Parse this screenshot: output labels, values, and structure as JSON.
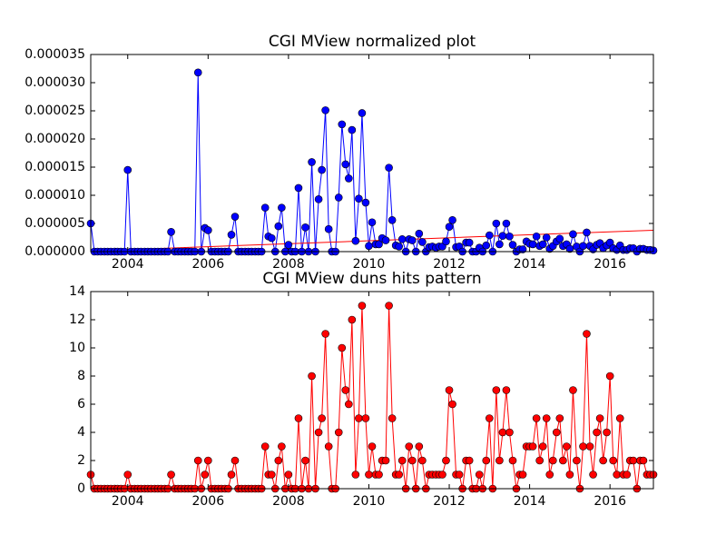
{
  "chart_data": [
    {
      "type": "line",
      "title": "CGI MView normalized plot",
      "xlim": [
        2003.08,
        2017.08
      ],
      "xticks": [
        2004,
        2006,
        2008,
        2010,
        2012,
        2014,
        2016
      ],
      "ylim": [
        0,
        3.5e-05
      ],
      "yticks": [
        {
          "value": 0,
          "label": "0.000000"
        },
        {
          "value": 5e-06,
          "label": "0.000005"
        },
        {
          "value": 1e-05,
          "label": "0.000010"
        },
        {
          "value": 1.5e-05,
          "label": "0.000015"
        },
        {
          "value": 2e-05,
          "label": "0.000020"
        },
        {
          "value": 2.5e-05,
          "label": "0.000025"
        },
        {
          "value": 3e-05,
          "label": "0.000030"
        },
        {
          "value": 3.5e-05,
          "label": "0.000035"
        }
      ],
      "x": [
        2003.08,
        2003.17,
        2003.25,
        2003.33,
        2003.42,
        2003.5,
        2003.58,
        2003.67,
        2003.75,
        2003.83,
        2003.92,
        2004.0,
        2004.08,
        2004.17,
        2004.25,
        2004.33,
        2004.42,
        2004.5,
        2004.58,
        2004.67,
        2004.75,
        2004.83,
        2004.92,
        2005.0,
        2005.08,
        2005.17,
        2005.25,
        2005.33,
        2005.42,
        2005.5,
        2005.58,
        2005.67,
        2005.75,
        2005.83,
        2005.92,
        2006.0,
        2006.08,
        2006.17,
        2006.25,
        2006.33,
        2006.42,
        2006.5,
        2006.58,
        2006.67,
        2006.75,
        2006.83,
        2006.92,
        2007.0,
        2007.08,
        2007.17,
        2007.25,
        2007.33,
        2007.42,
        2007.5,
        2007.58,
        2007.67,
        2007.75,
        2007.83,
        2007.92,
        2008.0,
        2008.08,
        2008.17,
        2008.25,
        2008.33,
        2008.42,
        2008.5,
        2008.58,
        2008.67,
        2008.75,
        2008.83,
        2008.92,
        2009.0,
        2009.08,
        2009.17,
        2009.25,
        2009.33,
        2009.42,
        2009.5,
        2009.58,
        2009.67,
        2009.75,
        2009.83,
        2009.92,
        2010.0,
        2010.08,
        2010.17,
        2010.25,
        2010.33,
        2010.42,
        2010.5,
        2010.58,
        2010.67,
        2010.75,
        2010.83,
        2010.92,
        2011.0,
        2011.08,
        2011.17,
        2011.25,
        2011.33,
        2011.42,
        2011.5,
        2011.58,
        2011.67,
        2011.75,
        2011.83,
        2011.92,
        2012.0,
        2012.08,
        2012.17,
        2012.25,
        2012.33,
        2012.42,
        2012.5,
        2012.58,
        2012.67,
        2012.75,
        2012.83,
        2012.92,
        2013.0,
        2013.08,
        2013.17,
        2013.25,
        2013.33,
        2013.42,
        2013.5,
        2013.58,
        2013.67,
        2013.75,
        2013.83,
        2013.92,
        2014.0,
        2014.08,
        2014.17,
        2014.25,
        2014.33,
        2014.42,
        2014.5,
        2014.58,
        2014.67,
        2014.75,
        2014.83,
        2014.92,
        2015.0,
        2015.08,
        2015.17,
        2015.25,
        2015.33,
        2015.42,
        2015.5,
        2015.58,
        2015.67,
        2015.75,
        2015.83,
        2015.92,
        2016.0,
        2016.08,
        2016.17,
        2016.25,
        2016.33,
        2016.42,
        2016.5,
        2016.58,
        2016.67,
        2016.75,
        2016.83,
        2016.92,
        2017.0,
        2017.08
      ],
      "color": "#0000ff",
      "values": [
        5e-06,
        0,
        0,
        0,
        0,
        0,
        0,
        0,
        0,
        0,
        0,
        1.45e-05,
        0,
        0,
        0,
        0,
        0,
        0,
        0,
        0,
        0,
        0,
        0,
        0,
        3.5e-06,
        0,
        0,
        0,
        0,
        0,
        0,
        0,
        3.18e-05,
        0,
        4.2e-06,
        3.8e-06,
        0,
        0,
        0,
        0,
        0,
        0,
        3e-06,
        6.2e-06,
        0,
        0,
        0,
        0,
        0,
        0,
        0,
        0,
        7.8e-06,
        2.7e-06,
        2.4e-06,
        0,
        4.5e-06,
        7.8e-06,
        0,
        1.2e-06,
        0,
        0,
        1.13e-05,
        0,
        4.3e-06,
        0,
        1.59e-05,
        0,
        9.3e-06,
        1.45e-05,
        2.51e-05,
        4e-06,
        0,
        0,
        9.6e-06,
        2.26e-05,
        1.55e-05,
        1.3e-05,
        2.16e-05,
        1.9e-06,
        9.4e-06,
        2.46e-05,
        8.7e-06,
        1e-06,
        5.2e-06,
        1.3e-06,
        1.3e-06,
        2.4e-06,
        2e-06,
        1.49e-05,
        5.6e-06,
        1.1e-06,
        9e-07,
        2.2e-06,
        0,
        2.2e-06,
        2e-06,
        0,
        3.2e-06,
        1.7e-06,
        0,
        8e-07,
        9e-07,
        7e-07,
        9e-07,
        9e-07,
        1.8e-06,
        4.4e-06,
        5.6e-06,
        8e-07,
        9e-07,
        0,
        1.6e-06,
        1.6e-06,
        0,
        0,
        7e-07,
        0,
        1.1e-06,
        2.9e-06,
        0,
        5e-06,
        1.3e-06,
        2.8e-06,
        5e-06,
        2.7e-06,
        1.2e-06,
        0,
        4e-07,
        4e-07,
        1.8e-06,
        1.4e-06,
        1.3e-06,
        2.7e-06,
        1e-06,
        1.3e-06,
        2.5e-06,
        5e-07,
        1e-06,
        1.8e-06,
        2.3e-06,
        1e-06,
        1.3e-06,
        5e-07,
        3.1e-06,
        9e-07,
        0,
        1e-06,
        3.4e-06,
        1e-06,
        4e-07,
        1.2e-06,
        1.5e-06,
        6e-07,
        1.1e-06,
        1.6e-06,
        6e-07,
        3e-07,
        1.1e-06,
        3e-07,
        3e-07,
        6e-07,
        6e-07,
        0,
        5e-07,
        5e-07,
        3e-07,
        3e-07,
        2e-07
      ],
      "trend": {
        "x": [
          2003.08,
          2017.08
        ],
        "values": [
          1e-07,
          3.8e-06
        ],
        "color": "#ff0000"
      }
    },
    {
      "type": "line",
      "title": "CGI MView duns hits pattern",
      "xlim": [
        2003.08,
        2017.08
      ],
      "xticks": [
        2004,
        2006,
        2008,
        2010,
        2012,
        2014,
        2016
      ],
      "ylim": [
        0,
        14
      ],
      "yticks": [
        0,
        2,
        4,
        6,
        8,
        10,
        12,
        14
      ],
      "x": [
        2003.08,
        2003.17,
        2003.25,
        2003.33,
        2003.42,
        2003.5,
        2003.58,
        2003.67,
        2003.75,
        2003.83,
        2003.92,
        2004.0,
        2004.08,
        2004.17,
        2004.25,
        2004.33,
        2004.42,
        2004.5,
        2004.58,
        2004.67,
        2004.75,
        2004.83,
        2004.92,
        2005.0,
        2005.08,
        2005.17,
        2005.25,
        2005.33,
        2005.42,
        2005.5,
        2005.58,
        2005.67,
        2005.75,
        2005.83,
        2005.92,
        2006.0,
        2006.08,
        2006.17,
        2006.25,
        2006.33,
        2006.42,
        2006.5,
        2006.58,
        2006.67,
        2006.75,
        2006.83,
        2006.92,
        2007.0,
        2007.08,
        2007.17,
        2007.25,
        2007.33,
        2007.42,
        2007.5,
        2007.58,
        2007.67,
        2007.75,
        2007.83,
        2007.92,
        2008.0,
        2008.08,
        2008.17,
        2008.25,
        2008.33,
        2008.42,
        2008.5,
        2008.58,
        2008.67,
        2008.75,
        2008.83,
        2008.92,
        2009.0,
        2009.08,
        2009.17,
        2009.25,
        2009.33,
        2009.42,
        2009.5,
        2009.58,
        2009.67,
        2009.75,
        2009.83,
        2009.92,
        2010.0,
        2010.08,
        2010.17,
        2010.25,
        2010.33,
        2010.42,
        2010.5,
        2010.58,
        2010.67,
        2010.75,
        2010.83,
        2010.92,
        2011.0,
        2011.08,
        2011.17,
        2011.25,
        2011.33,
        2011.42,
        2011.5,
        2011.58,
        2011.67,
        2011.75,
        2011.83,
        2011.92,
        2012.0,
        2012.08,
        2012.17,
        2012.25,
        2012.33,
        2012.42,
        2012.5,
        2012.58,
        2012.67,
        2012.75,
        2012.83,
        2012.92,
        2013.0,
        2013.08,
        2013.17,
        2013.25,
        2013.33,
        2013.42,
        2013.5,
        2013.58,
        2013.67,
        2013.75,
        2013.83,
        2013.92,
        2014.0,
        2014.08,
        2014.17,
        2014.25,
        2014.33,
        2014.42,
        2014.5,
        2014.58,
        2014.67,
        2014.75,
        2014.83,
        2014.92,
        2015.0,
        2015.08,
        2015.17,
        2015.25,
        2015.33,
        2015.42,
        2015.5,
        2015.58,
        2015.67,
        2015.75,
        2015.83,
        2015.92,
        2016.0,
        2016.08,
        2016.17,
        2016.25,
        2016.33,
        2016.42,
        2016.5,
        2016.58,
        2016.67,
        2016.75,
        2016.83,
        2016.92,
        2017.0,
        2017.08
      ],
      "color": "#ff0000",
      "values": [
        1,
        0,
        0,
        0,
        0,
        0,
        0,
        0,
        0,
        0,
        0,
        1,
        0,
        0,
        0,
        0,
        0,
        0,
        0,
        0,
        0,
        0,
        0,
        0,
        1,
        0,
        0,
        0,
        0,
        0,
        0,
        0,
        2,
        0,
        1,
        2,
        0,
        0,
        0,
        0,
        0,
        0,
        1,
        2,
        0,
        0,
        0,
        0,
        0,
        0,
        0,
        0,
        3,
        1,
        1,
        0,
        2,
        3,
        0,
        1,
        0,
        0,
        5,
        0,
        2,
        0,
        8,
        0,
        4,
        5,
        11,
        3,
        0,
        0,
        4,
        10,
        7,
        6,
        12,
        1,
        5,
        13,
        5,
        1,
        3,
        1,
        1,
        2,
        2,
        13,
        5,
        1,
        1,
        2,
        0,
        3,
        2,
        0,
        3,
        2,
        0,
        1,
        1,
        1,
        1,
        1,
        2,
        7,
        6,
        1,
        1,
        0,
        2,
        2,
        0,
        0,
        1,
        0,
        2,
        5,
        0,
        7,
        2,
        4,
        7,
        4,
        2,
        0,
        1,
        1,
        3,
        3,
        3,
        5,
        2,
        3,
        5,
        1,
        2,
        4,
        5,
        2,
        3,
        1,
        7,
        2,
        0,
        3,
        11,
        3,
        1,
        4,
        5,
        2,
        4,
        8,
        2,
        1,
        5,
        1,
        1,
        2,
        2,
        0,
        2,
        2,
        1,
        1,
        1
      ]
    }
  ]
}
